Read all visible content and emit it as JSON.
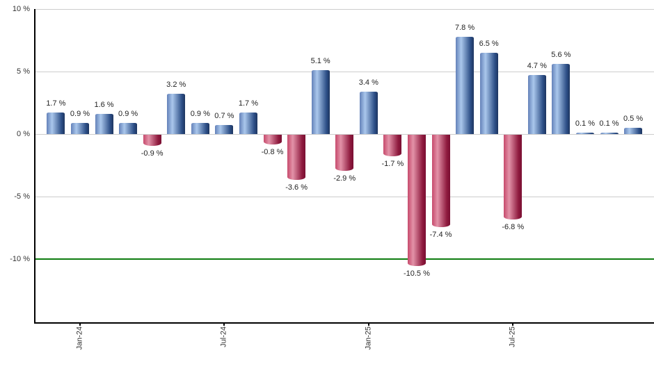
{
  "chart_data": {
    "type": "bar",
    "title": "",
    "xlabel": "",
    "ylabel": "",
    "values": [
      1.7,
      0.9,
      1.6,
      0.9,
      -0.9,
      3.2,
      0.9,
      0.7,
      1.7,
      -0.8,
      -3.6,
      5.1,
      -2.9,
      3.4,
      -1.7,
      -10.5,
      -7.4,
      7.8,
      6.5,
      -6.8,
      4.7,
      5.6,
      0.1,
      0.1,
      0.5
    ],
    "bar_labels": [
      "1.7 %",
      "0.9 %",
      "1.6 %",
      "0.9 %",
      "-0.9 %",
      "3.2 %",
      "0.9 %",
      "0.7 %",
      "1.7 %",
      "-0.8 %",
      "-3.6 %",
      "5.1 %",
      "-2.9 %",
      "3.4 %",
      "-1.7 %",
      "-10.5 %",
      "-7.4 %",
      "7.8 %",
      "6.5 %",
      "-6.8 %",
      "4.7 %",
      "5.6 %",
      "0.1 %",
      "0.1 %",
      "0.5 %"
    ],
    "y_ticks": [
      {
        "value": 10,
        "label": "10 %"
      },
      {
        "value": 5,
        "label": "5 %"
      },
      {
        "value": 0,
        "label": "0 %"
      },
      {
        "value": -5,
        "label": "-5 %"
      },
      {
        "value": -10,
        "label": "-10 %"
      }
    ],
    "x_ticks": [
      {
        "bar_index": 1,
        "label": "Jan-24"
      },
      {
        "bar_index": 7,
        "label": "Jul-24"
      },
      {
        "bar_index": 13,
        "label": "Jan-25"
      },
      {
        "bar_index": 19,
        "label": "Jul-25"
      }
    ],
    "ylim": [
      -15.1,
      10
    ],
    "grid": true,
    "legend_position": "none",
    "reference_line": {
      "value": -10,
      "color": "#0e7c10"
    },
    "colors": {
      "positive_gradient": [
        "#6482b9",
        "#aac7ec",
        "#2d4f87",
        "#1d3560"
      ],
      "negative_gradient": [
        "#c64a6c",
        "#e392a8",
        "#8e1a3e",
        "#7a0f32"
      ],
      "gridline": "#cccccc",
      "axis": "#000000",
      "value_label_text": "#222222",
      "tick_label_text": "#333333",
      "background": "#ffffff"
    }
  }
}
